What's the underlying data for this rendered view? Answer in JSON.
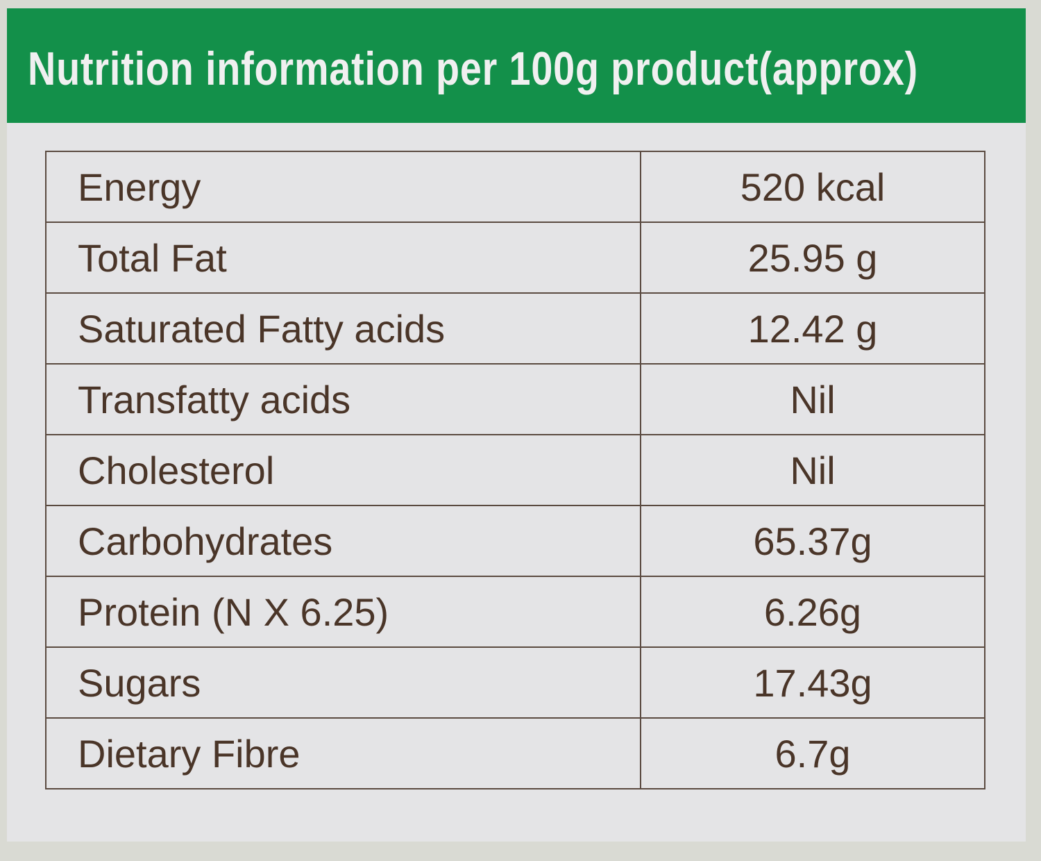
{
  "header": {
    "title": "Nutrition information per 100g product(approx)"
  },
  "table": {
    "rows": [
      [
        "Energy",
        "520 kcal"
      ],
      [
        "Total Fat",
        "25.95 g"
      ],
      [
        "Saturated Fatty acids",
        "12.42 g"
      ],
      [
        "Transfatty acids",
        "Nil"
      ],
      [
        "Cholesterol",
        "Nil"
      ],
      [
        "Carbohydrates",
        "65.37g"
      ],
      [
        "Protein (N X 6.25)",
        "6.26g"
      ],
      [
        "Sugars",
        "17.43g"
      ],
      [
        "Dietary Fibre",
        "6.7g"
      ]
    ]
  }
}
